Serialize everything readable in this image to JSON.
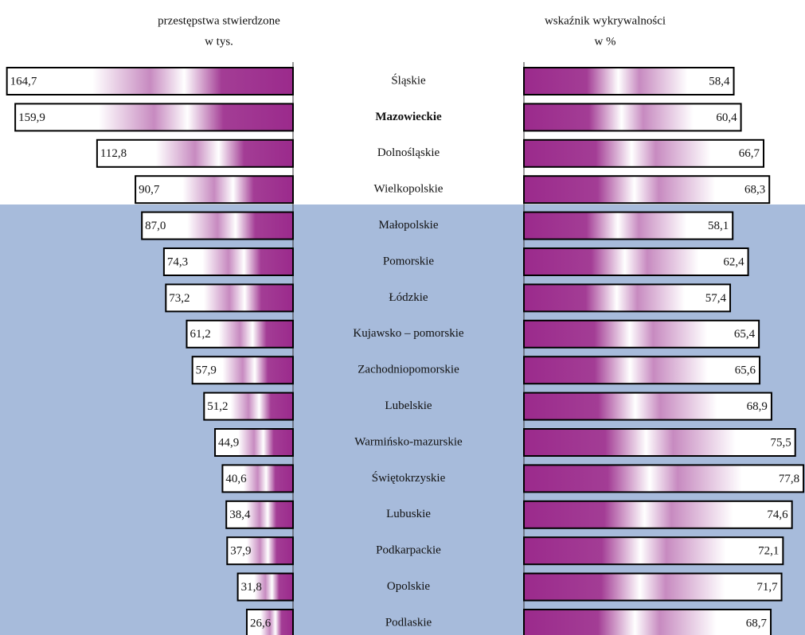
{
  "chart_data": [
    {
      "type": "bar",
      "orientation": "horizontal",
      "direction": "leftward",
      "title": "przestępstwa stwierdzone",
      "subtitle": "w tys.",
      "categories": [
        "Śląskie",
        "Mazowieckie",
        "Dolnośląskie",
        "Wielkopolskie",
        "Małopolskie",
        "Pomorskie",
        "Łódzkie",
        "Kujawsko – pomorskie",
        "Zachodniopomorskie",
        "Lubelskie",
        "Warmińsko-mazurskie",
        "Świętokrzyskie",
        "Lubuskie",
        "Podkarpackie",
        "Opolskie",
        "Podlaskie"
      ],
      "highlight_index": 1,
      "values": [
        164.7,
        159.9,
        112.8,
        90.7,
        87.0,
        74.3,
        73.2,
        61.2,
        57.9,
        51.2,
        44.9,
        40.6,
        38.4,
        37.9,
        31.8,
        26.6
      ],
      "value_labels": [
        "164,7",
        "159,9",
        "112,8",
        "90,7",
        "87,0",
        "74,3",
        "73,2",
        "61,2",
        "57,9",
        "51,2",
        "44,9",
        "40,6",
        "38,4",
        "37,9",
        "31,8",
        "26,6"
      ],
      "color": "#9b2a8c",
      "xlim": [
        0,
        165
      ]
    },
    {
      "type": "bar",
      "orientation": "horizontal",
      "direction": "rightward",
      "title": "wskaźnik wykrywalności",
      "subtitle": "w %",
      "values": [
        58.4,
        60.4,
        66.7,
        68.3,
        58.1,
        62.4,
        57.4,
        65.4,
        65.6,
        68.9,
        75.5,
        77.8,
        74.6,
        72.1,
        71.7,
        68.7
      ],
      "value_labels": [
        "58,4",
        "60,4",
        "66,7",
        "68,3",
        "58,1",
        "62,4",
        "57,4",
        "65,4",
        "65,6",
        "68,9",
        "75,5",
        "77,8",
        "74,6",
        "72,1",
        "71,7",
        "68,7"
      ],
      "color": "#9b2a8c",
      "xlim": [
        0,
        78
      ]
    }
  ]
}
